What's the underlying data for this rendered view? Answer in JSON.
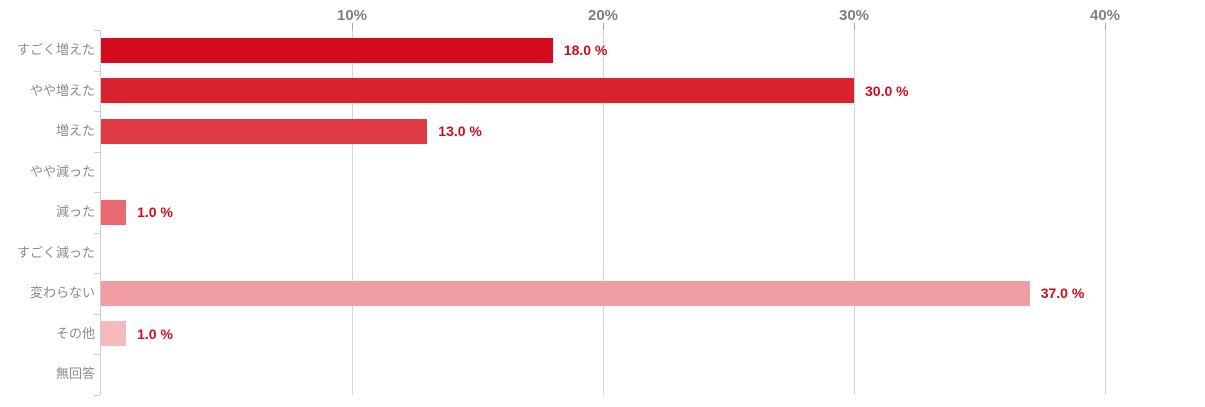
{
  "chart_data": {
    "type": "bar",
    "orientation": "horizontal",
    "title": "",
    "xlabel": "",
    "ylabel": "",
    "x_axis_side": "top",
    "xlim": [
      0,
      40
    ],
    "grid": true,
    "categories": [
      "すごく増えた",
      "やや増えた",
      "増えた",
      "やや減った",
      "減った",
      "すごく減った",
      "変わらない",
      "その他",
      "無回答"
    ],
    "values": [
      18.0,
      30.0,
      13.0,
      0,
      1.0,
      0,
      37.0,
      1.0,
      0
    ],
    "value_labels": [
      "18.0 %",
      "30.0 %",
      "13.0 %",
      "",
      "1.0 %",
      "",
      "37.0 %",
      "1.0 %",
      ""
    ],
    "x_ticks": [
      {
        "value": 10,
        "label": "10%"
      },
      {
        "value": 20,
        "label": "20%"
      },
      {
        "value": 30,
        "label": "30%"
      },
      {
        "value": 40,
        "label": "40%"
      }
    ],
    "bar_colors": [
      "#d20b1e",
      "#d92430",
      "#df3a46",
      "#e4515c",
      "#e96871",
      "#ee858c",
      "#f19da4",
      "#f5b9be",
      "#f8d2d6"
    ],
    "colors": {
      "value_label": "#d20b1e",
      "tick_label": "#7f7f7f",
      "category_label": "#8c8c8c",
      "gridline": "#d6d6d6",
      "axis_line": "#c9ced3",
      "tick_mark": "#a8a8a8"
    }
  }
}
